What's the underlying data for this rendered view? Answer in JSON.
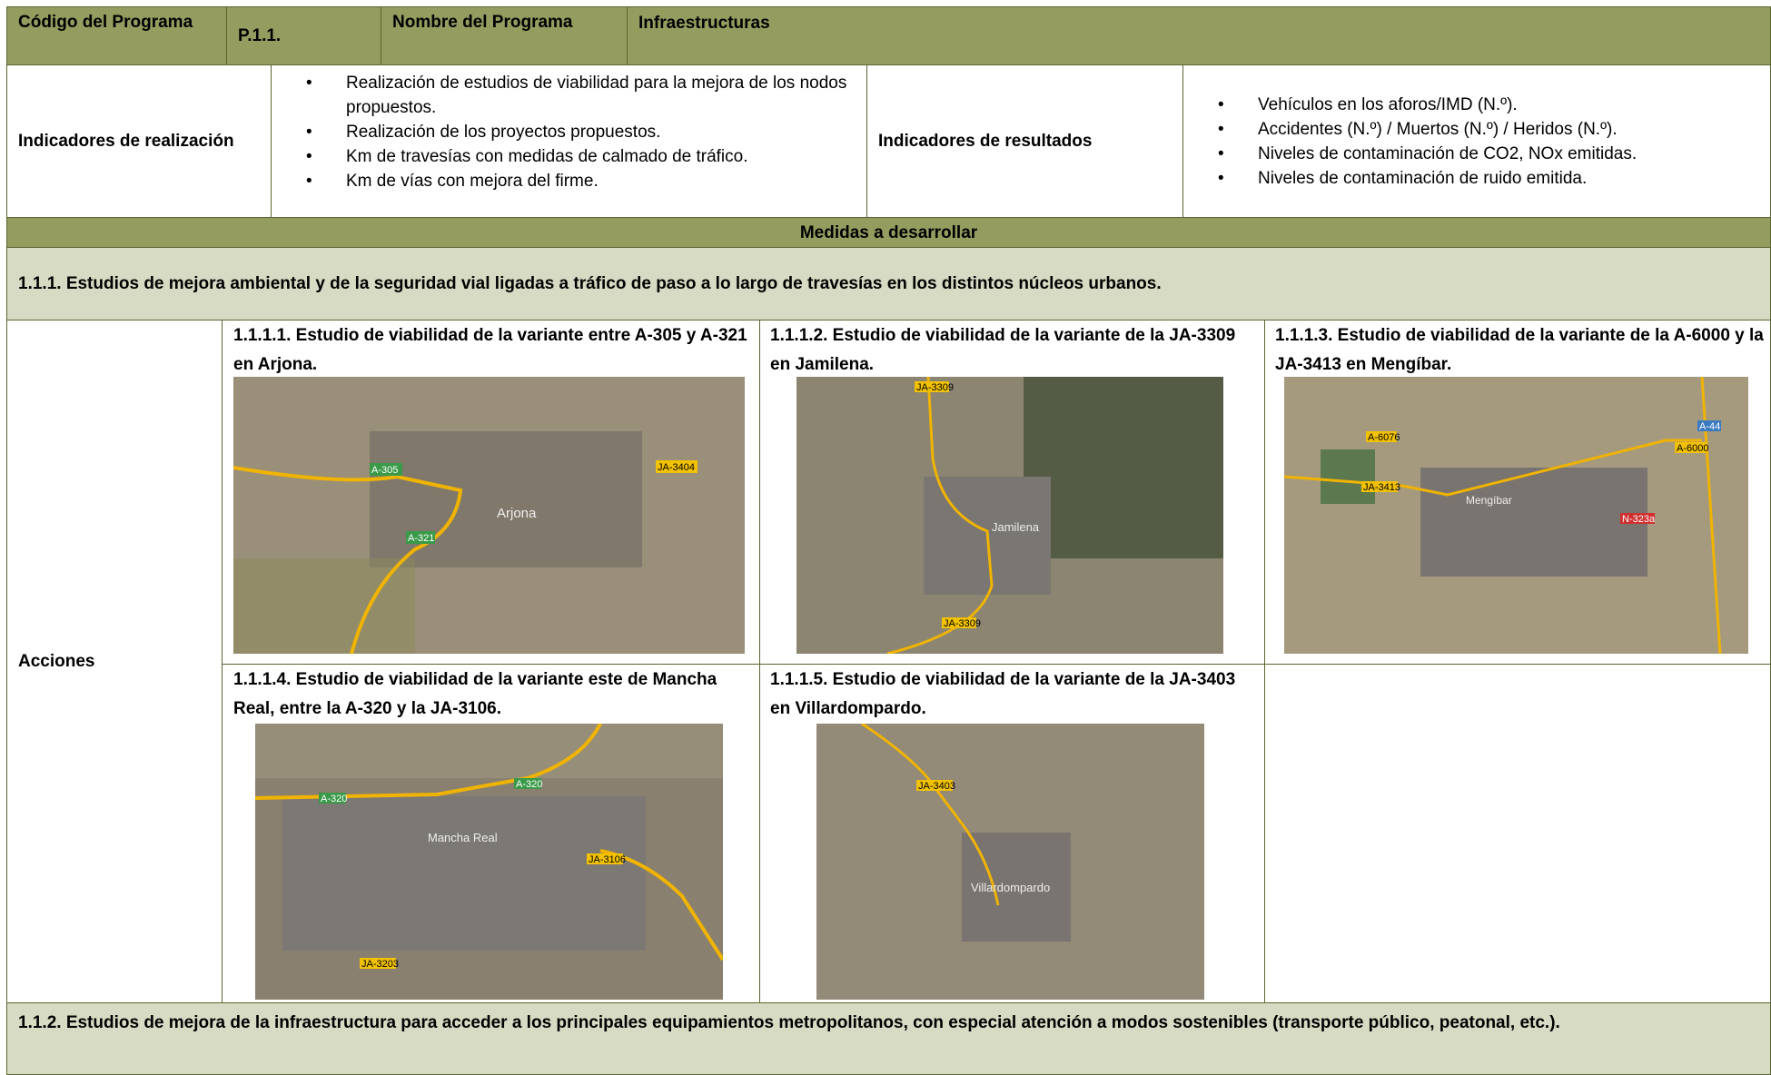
{
  "header": {
    "code_label": "Código del Programa",
    "code": "P.1.1.",
    "name_label": "Nombre del Programa",
    "name": "Infraestructuras"
  },
  "indicators": {
    "realizacion_label": "Indicadores de realización",
    "realizacion": [
      "Realización de estudios de viabilidad para la mejora de los nodos propuestos.",
      "Realización de los proyectos propuestos.",
      "Km de travesías con medidas de calmado de tráfico.",
      "Km de vías con mejora del firme."
    ],
    "resultados_label": "Indicadores de resultados",
    "resultados": [
      "Vehículos en los aforos/IMD (N.º).",
      "Accidentes (N.º) / Muertos (N.º) / Heridos (N.º).",
      "Niveles de contaminación de CO2, NOx emitidas.",
      "Niveles de contaminación de ruido emitida."
    ]
  },
  "medidas_title": "Medidas a desarrollar",
  "measure_1": {
    "title": "1.1.1. Estudios de mejora ambiental y de la seguridad vial ligadas a tráfico de paso a lo largo de travesías en los distintos núcleos urbanos.",
    "actions_label": "Acciones",
    "actions": [
      {
        "title": "1.1.1.1. Estudio de viabilidad de la variante entre A-305 y A-321 en Arjona.",
        "map_labels": [
          "A-305",
          "JA-3404",
          "Arjona",
          "A-321"
        ]
      },
      {
        "title": "1.1.1.2. Estudio de viabilidad de la variante de la JA-3309 en Jamilena.",
        "map_labels": [
          "JA-3309",
          "Jamilena",
          "JA-3309"
        ]
      },
      {
        "title": "1.1.1.3. Estudio de viabilidad de la variante de la A-6000 y la JA-3413 en Mengíbar.",
        "map_labels": [
          "A-6076",
          "A-44",
          "A-6000",
          "JA-3413",
          "Mengíbar",
          "N-323a"
        ]
      },
      {
        "title": "1.1.1.4. Estudio de viabilidad de la variante este de Mancha Real, entre la A-320 y la JA-3106.",
        "map_labels": [
          "A-320",
          "A-320",
          "Mancha Real",
          "JA-3106",
          "JA-3203"
        ]
      },
      {
        "title": "1.1.1.5. Estudio de viabilidad de la variante de la JA-3403 en Villardompardo.",
        "map_labels": [
          "JA-3403",
          "Villardompardo"
        ]
      }
    ]
  },
  "measure_2": {
    "title": "1.1.2. Estudios de mejora de la infraestructura para acceder a los principales equipamientos metropolitanos, con especial atención a modos sostenibles (transporte público, peatonal, etc.)."
  }
}
